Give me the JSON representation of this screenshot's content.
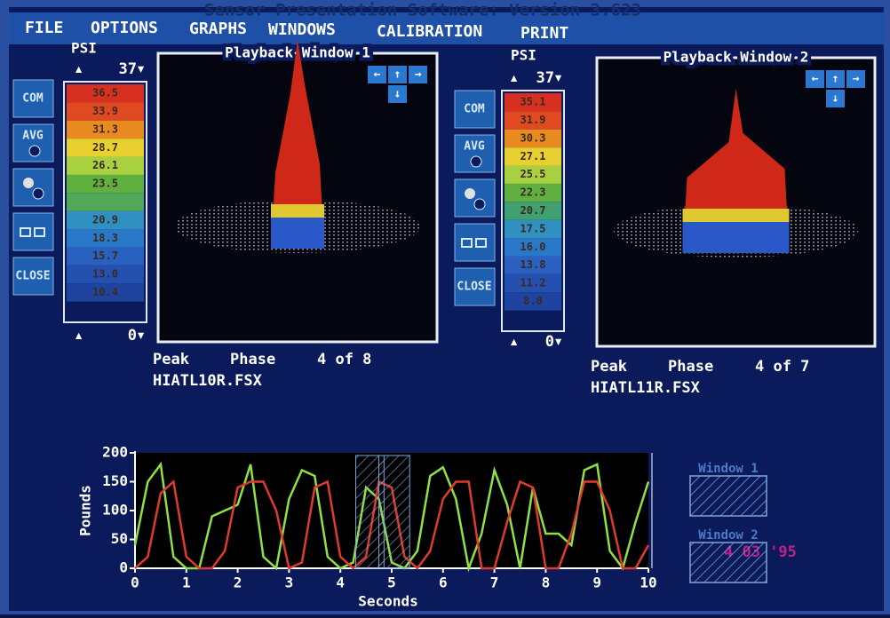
{
  "title": "Sensor Presentation Software:  Version 3.623",
  "menu": [
    "FILE",
    "OPTIONS",
    "GRAPHS",
    "WINDOWS",
    "CALIBRATION",
    "PRINT"
  ],
  "panels": [
    {
      "scale_label": "PSI",
      "scale_max": "37",
      "scale_min": "0",
      "scale_values": [
        "36.5",
        "33.9",
        "31.3",
        "28.7",
        "26.1",
        "23.5",
        "20.9",
        "18.3",
        "15.7",
        "13.0",
        "10.4"
      ],
      "buttons": [
        "COM",
        "AVG",
        "CLOSE"
      ],
      "window_title": "Playback Window 1",
      "peak": "Peak",
      "phase": "Phase",
      "phase_value": "4 of 8",
      "file": "HIATL10R.FSX"
    },
    {
      "scale_label": "PSI",
      "scale_max": "37",
      "scale_min": "0",
      "scale_values": [
        "35.1",
        "31.9",
        "30.3",
        "27.1",
        "25.5",
        "22.3",
        "20.7",
        "17.5",
        "16.0",
        "13.8",
        "11.2",
        "8.0"
      ],
      "buttons": [
        "COM",
        "AVG",
        "CLOSE"
      ],
      "window_title": "Playback Window 2",
      "peak": "Peak",
      "phase": "Phase",
      "phase_value": "4 of 7",
      "file": "HIATL11R.FSX"
    }
  ],
  "chart_data": {
    "type": "line",
    "xlabel": "Seconds",
    "ylabel": "Pounds",
    "x": [
      0,
      0.25,
      0.5,
      0.75,
      1,
      1.25,
      1.5,
      1.75,
      2,
      2.25,
      2.5,
      2.75,
      3,
      3.25,
      3.5,
      3.75,
      4,
      4.25,
      4.5,
      4.75,
      5,
      5.25,
      5.5,
      5.75,
      6,
      6.25,
      6.5,
      6.75,
      7,
      7.25,
      7.5,
      7.75,
      8,
      8.25,
      8.5,
      8.75,
      9,
      9.25,
      9.5,
      9.75,
      10
    ],
    "series": [
      {
        "color": "#8fe040",
        "values": [
          40,
          150,
          180,
          20,
          0,
          0,
          90,
          100,
          110,
          180,
          20,
          0,
          120,
          170,
          160,
          20,
          0,
          10,
          140,
          120,
          10,
          0,
          30,
          160,
          175,
          120,
          0,
          60,
          170,
          110,
          0,
          140,
          60,
          60,
          40,
          170,
          180,
          30,
          0,
          80,
          150
        ]
      },
      {
        "color": "#e03a2e",
        "values": [
          0,
          20,
          130,
          150,
          20,
          0,
          0,
          30,
          140,
          150,
          150,
          100,
          0,
          10,
          140,
          150,
          20,
          0,
          20,
          150,
          140,
          20,
          0,
          30,
          120,
          150,
          150,
          0,
          0,
          80,
          150,
          140,
          0,
          0,
          60,
          150,
          150,
          100,
          0,
          0,
          40
        ]
      }
    ],
    "xlim": [
      0,
      10
    ],
    "ylim": [
      0,
      200
    ],
    "xticks": [
      0,
      1,
      2,
      3,
      4,
      5,
      6,
      7,
      8,
      9,
      10
    ],
    "yticks": [
      0,
      50,
      100,
      150,
      200
    ],
    "windows": [
      {
        "name": "Window 1",
        "range": [
          4.3,
          4.85
        ]
      },
      {
        "name": "Window 2",
        "range": [
          4.75,
          5.35
        ]
      }
    ]
  },
  "stamp": "4 03 '95"
}
